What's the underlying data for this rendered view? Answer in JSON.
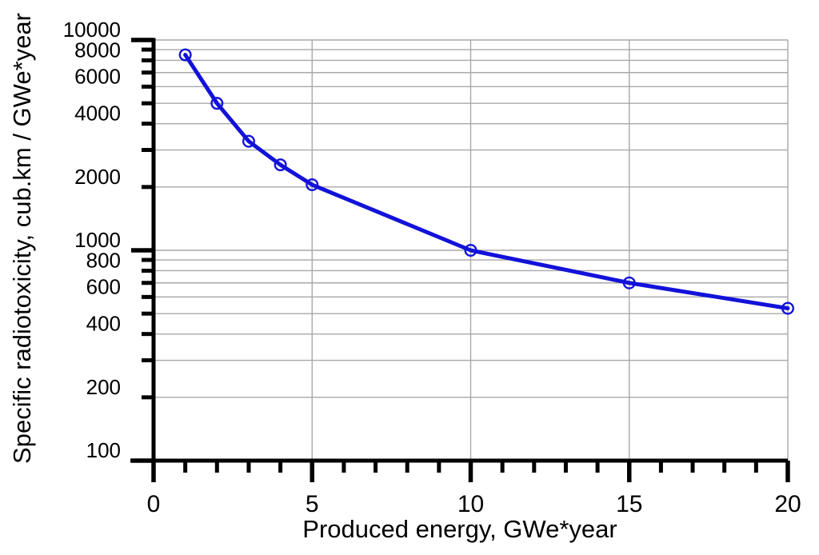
{
  "chart_data": {
    "type": "line",
    "title": "",
    "xlabel": "Produced energy, GWe*year",
    "ylabel": "Specific radiotoxicity, cub.km / GWe*year",
    "x": [
      1,
      2,
      3,
      4,
      5,
      10,
      15,
      20
    ],
    "y": [
      8500,
      5000,
      3300,
      2550,
      2050,
      1000,
      700,
      530
    ],
    "x_axis": {
      "min": 0,
      "max": 20,
      "scale": "linear",
      "major_ticks": [
        0,
        5,
        10,
        15,
        20
      ],
      "minor_tick_step": 1,
      "gridlines": [
        5,
        10,
        15,
        20
      ]
    },
    "y_axis": {
      "min": 100,
      "max": 10000,
      "scale": "log",
      "major_ticks": [
        100,
        1000,
        10000
      ],
      "minor_ticks_per_decade": [
        2,
        3,
        4,
        5,
        6,
        7,
        8,
        9
      ],
      "labeled_ticks": [
        10000,
        8000,
        6000,
        4000,
        2000,
        1000,
        800,
        600,
        400,
        200,
        100
      ]
    },
    "grid": true,
    "legend": null,
    "style": {
      "line_color": "#1212d9",
      "marker": "open-circle",
      "marker_color": "#1212d9",
      "grid_color": "#a8a8a8",
      "axis_color": "#000000",
      "text_color": "#000000",
      "background": "#ffffff"
    }
  }
}
